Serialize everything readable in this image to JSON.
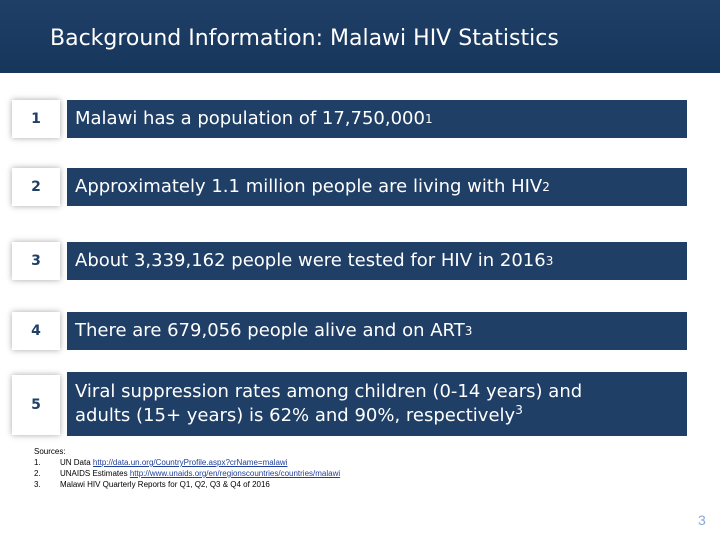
{
  "header": {
    "title": "Background Information: Malawi HIV Statistics"
  },
  "stats": [
    {
      "num": "1",
      "text": "Malawi has a population of 17,750,000",
      "sup": "1"
    },
    {
      "num": "2",
      "text": "Approximately 1.1 million people are living with HIV",
      "sup": "2"
    },
    {
      "num": "3",
      "text": "About 3,339,162 people were tested for HIV in 2016",
      "sup": "3"
    },
    {
      "num": "4",
      "text": "There are 679,056 people alive and on ART",
      "sup": "3"
    },
    {
      "num": "5",
      "line1": "Viral suppression rates among children (0-14 years) and",
      "line2": "adults (15+ years) is  62% and 90%, respectively",
      "sup": "3"
    }
  ],
  "sources": {
    "heading": "Sources:",
    "items": [
      {
        "num": "1.",
        "prefix": "UN Data ",
        "link": "http://data.un.org/CountryProfile.aspx?crName=malawi",
        "suffix": ""
      },
      {
        "num": "2.",
        "prefix": "UNAIDS Estimates ",
        "link": "http://www.unaids.org/en/regionscountries/countries/malawi",
        "suffix": ""
      },
      {
        "num": "3.",
        "prefix": "Malawi HIV Quarterly Reports for Q1, Q2, Q3 & Q4 of 2016",
        "link": "",
        "suffix": ""
      }
    ]
  },
  "page_number": "3"
}
